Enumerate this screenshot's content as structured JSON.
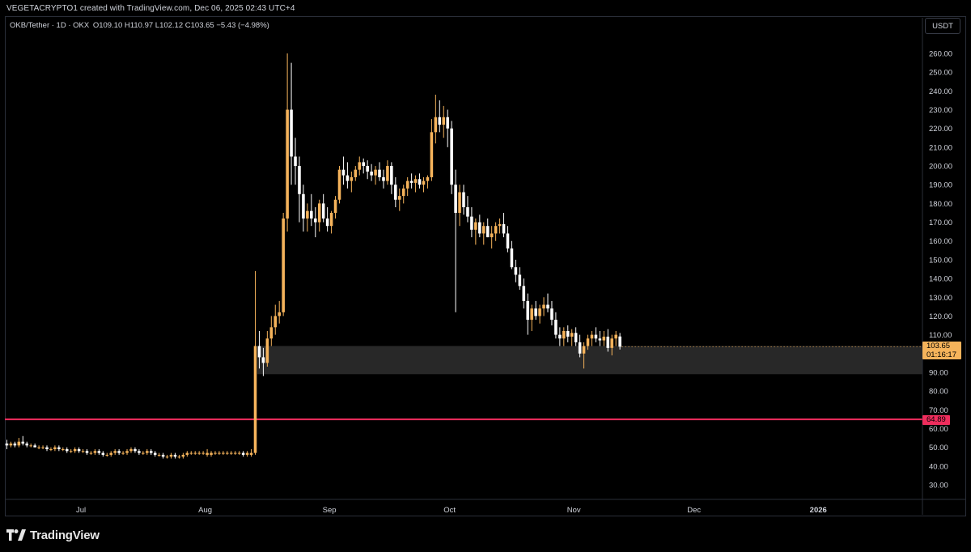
{
  "header": {
    "attribution": "VEGETACRYPTO1 created with TradingView.com, Dec 06, 2025 02:43 UTC+4"
  },
  "legend": {
    "symbol": "OKB/Tether · 1D · OKX",
    "ohlc": "O109.10 H110.97 L102.12 C103.65 −5.43 (−4.98%)"
  },
  "currency": "USDT",
  "last_price": {
    "value": "103.65",
    "countdown": "01:16:17"
  },
  "level_line": {
    "label": "64.89",
    "color": "#ef2d5d"
  },
  "branding": {
    "text": "TradingView"
  },
  "colors": {
    "up": "#f5b35b",
    "down": "#ffffff",
    "background": "#000000",
    "zone": "#2a2a2a",
    "level": "#ef2d5d"
  },
  "chart_data": {
    "type": "candlestick",
    "symbol": "OKB/Tether",
    "interval": "1D",
    "exchange": "OKX",
    "ylim": [
      20,
      280
    ],
    "y_ticks": [
      "260.00",
      "250.00",
      "240.00",
      "230.00",
      "220.00",
      "210.00",
      "200.00",
      "190.00",
      "180.00",
      "170.00",
      "160.00",
      "150.00",
      "140.00",
      "130.00",
      "120.00",
      "110.00",
      "90.00",
      "80.00",
      "70.00",
      "60.00",
      "50.00",
      "40.00",
      "30.00"
    ],
    "x_ticks": [
      "Jul",
      "Aug",
      "Sep",
      "Oct",
      "Nov",
      "Dec",
      "2026"
    ],
    "x_tick_days": [
      19,
      50,
      81,
      111,
      142,
      172,
      203
    ],
    "x_range_days": [
      0,
      229
    ],
    "zone": {
      "low": 89,
      "high": 104
    },
    "horizontal_line": 64.89,
    "candles": [
      [
        52,
        54,
        49,
        51
      ],
      [
        51,
        53,
        50,
        52
      ],
      [
        52,
        53,
        50,
        51
      ],
      [
        51,
        55,
        50,
        53
      ],
      [
        53,
        56,
        51,
        52
      ],
      [
        52,
        53,
        50,
        51
      ],
      [
        51,
        52,
        50,
        51
      ],
      [
        51,
        52,
        50,
        50
      ],
      [
        50,
        51,
        49,
        50
      ],
      [
        50,
        51,
        49,
        50
      ],
      [
        50,
        51,
        48,
        49
      ],
      [
        49,
        50,
        48,
        49
      ],
      [
        49,
        51,
        48,
        50
      ],
      [
        50,
        51,
        48,
        49
      ],
      [
        49,
        50,
        48,
        49
      ],
      [
        49,
        50,
        47,
        48
      ],
      [
        48,
        49,
        47,
        48
      ],
      [
        48,
        50,
        47,
        49
      ],
      [
        49,
        50,
        47,
        48
      ],
      [
        48,
        49,
        47,
        48
      ],
      [
        48,
        49,
        46,
        47
      ],
      [
        47,
        48,
        46,
        47
      ],
      [
        47,
        49,
        46,
        48
      ],
      [
        48,
        49,
        46,
        47
      ],
      [
        47,
        48,
        45,
        46
      ],
      [
        46,
        47,
        45,
        46
      ],
      [
        46,
        48,
        45,
        47
      ],
      [
        47,
        49,
        46,
        48
      ],
      [
        48,
        49,
        46,
        47
      ],
      [
        47,
        48,
        46,
        47
      ],
      [
        47,
        49,
        46,
        48
      ],
      [
        48,
        50,
        47,
        49
      ],
      [
        49,
        50,
        47,
        48
      ],
      [
        48,
        49,
        46,
        47
      ],
      [
        47,
        48,
        46,
        47
      ],
      [
        47,
        49,
        46,
        48
      ],
      [
        48,
        49,
        46,
        47
      ],
      [
        47,
        48,
        45,
        46
      ],
      [
        46,
        47,
        45,
        46
      ],
      [
        46,
        47,
        44,
        45
      ],
      [
        45,
        46,
        44,
        45
      ],
      [
        45,
        47,
        44,
        46
      ],
      [
        46,
        47,
        44,
        45
      ],
      [
        45,
        46,
        44,
        45
      ],
      [
        45,
        47,
        44,
        46
      ],
      [
        46,
        48,
        45,
        47
      ],
      [
        47,
        48,
        46,
        47
      ],
      [
        47,
        48,
        46,
        47
      ],
      [
        47,
        48,
        46,
        47
      ],
      [
        47,
        48,
        46,
        47
      ],
      [
        46,
        49,
        45,
        47
      ],
      [
        46,
        48,
        45,
        47
      ],
      [
        47,
        48,
        46,
        47
      ],
      [
        47,
        48,
        46,
        47
      ],
      [
        47,
        48,
        46,
        47
      ],
      [
        47,
        48,
        46,
        47
      ],
      [
        47,
        48,
        46,
        47
      ],
      [
        47,
        48,
        46,
        47
      ],
      [
        47,
        48,
        46,
        47
      ],
      [
        47,
        48,
        45,
        46
      ],
      [
        46,
        48,
        45,
        47
      ],
      [
        46,
        49,
        45,
        47
      ],
      [
        47,
        144,
        46,
        104
      ],
      [
        104,
        112,
        92,
        98
      ],
      [
        98,
        103,
        88,
        95
      ],
      [
        95,
        112,
        93,
        108
      ],
      [
        108,
        120,
        104,
        114
      ],
      [
        114,
        126,
        110,
        120
      ],
      [
        120,
        128,
        116,
        122
      ],
      [
        122,
        175,
        120,
        172
      ],
      [
        172,
        260,
        165,
        230
      ],
      [
        230,
        255,
        190,
        205
      ],
      [
        205,
        215,
        190,
        200
      ],
      [
        200,
        205,
        170,
        185
      ],
      [
        185,
        190,
        165,
        172
      ],
      [
        172,
        180,
        165,
        176
      ],
      [
        176,
        185,
        168,
        172
      ],
      [
        172,
        178,
        162,
        170
      ],
      [
        170,
        182,
        165,
        180
      ],
      [
        180,
        185,
        170,
        172
      ],
      [
        172,
        178,
        165,
        168
      ],
      [
        168,
        176,
        164,
        175
      ],
      [
        175,
        184,
        172,
        182
      ],
      [
        182,
        200,
        180,
        198
      ],
      [
        198,
        205,
        190,
        195
      ],
      [
        195,
        202,
        188,
        192
      ],
      [
        192,
        197,
        186,
        194
      ],
      [
        194,
        200,
        192,
        198
      ],
      [
        198,
        205,
        195,
        202
      ],
      [
        202,
        204,
        196,
        200
      ],
      [
        200,
        203,
        193,
        197
      ],
      [
        197,
        201,
        192,
        195
      ],
      [
        195,
        200,
        190,
        198
      ],
      [
        198,
        202,
        192,
        194
      ],
      [
        194,
        198,
        188,
        192
      ],
      [
        192,
        203,
        190,
        200
      ],
      [
        200,
        202,
        185,
        190
      ],
      [
        190,
        194,
        178,
        182
      ],
      [
        182,
        188,
        176,
        184
      ],
      [
        184,
        190,
        180,
        188
      ],
      [
        188,
        194,
        184,
        192
      ],
      [
        192,
        196,
        188,
        191
      ],
      [
        191,
        195,
        186,
        193
      ],
      [
        193,
        196,
        188,
        190
      ],
      [
        190,
        194,
        186,
        192
      ],
      [
        192,
        195,
        188,
        194
      ],
      [
        194,
        225,
        192,
        218
      ],
      [
        218,
        238,
        212,
        226
      ],
      [
        226,
        235,
        218,
        222
      ],
      [
        222,
        232,
        215,
        226
      ],
      [
        226,
        230,
        210,
        220
      ],
      [
        220,
        224,
        185,
        190
      ],
      [
        190,
        198,
        122,
        175
      ],
      [
        175,
        190,
        168,
        186
      ],
      [
        186,
        190,
        174,
        178
      ],
      [
        178,
        184,
        170,
        173
      ],
      [
        173,
        178,
        162,
        166
      ],
      [
        166,
        172,
        158,
        170
      ],
      [
        170,
        174,
        162,
        164
      ],
      [
        164,
        170,
        158,
        168
      ],
      [
        168,
        172,
        162,
        162
      ],
      [
        162,
        168,
        156,
        164
      ],
      [
        164,
        170,
        160,
        168
      ],
      [
        168,
        172,
        164,
        169
      ],
      [
        169,
        175,
        162,
        164
      ],
      [
        164,
        168,
        154,
        156
      ],
      [
        156,
        160,
        145,
        146
      ],
      [
        146,
        150,
        138,
        142
      ],
      [
        142,
        146,
        134,
        136
      ],
      [
        136,
        140,
        124,
        128
      ],
      [
        128,
        132,
        110,
        118
      ],
      [
        118,
        126,
        112,
        124
      ],
      [
        124,
        128,
        118,
        120
      ],
      [
        120,
        126,
        116,
        124
      ],
      [
        124,
        130,
        120,
        126
      ],
      [
        126,
        132,
        122,
        124
      ],
      [
        124,
        128,
        115,
        118
      ],
      [
        118,
        122,
        108,
        110
      ],
      [
        110,
        114,
        104,
        108
      ],
      [
        108,
        114,
        104,
        112
      ],
      [
        112,
        115,
        106,
        109
      ],
      [
        109,
        113,
        104,
        111
      ],
      [
        111,
        114,
        104,
        106
      ],
      [
        106,
        110,
        98,
        100
      ],
      [
        100,
        106,
        92,
        104
      ],
      [
        104,
        110,
        102,
        108
      ],
      [
        108,
        112,
        104,
        110
      ],
      [
        110,
        114,
        106,
        108
      ],
      [
        108,
        112,
        104,
        107
      ],
      [
        107,
        112,
        104,
        109
      ],
      [
        109,
        113,
        101,
        103
      ],
      [
        103,
        110,
        99,
        108
      ],
      [
        108,
        112,
        104,
        110
      ],
      [
        109.1,
        110.97,
        102.12,
        103.65
      ]
    ]
  }
}
